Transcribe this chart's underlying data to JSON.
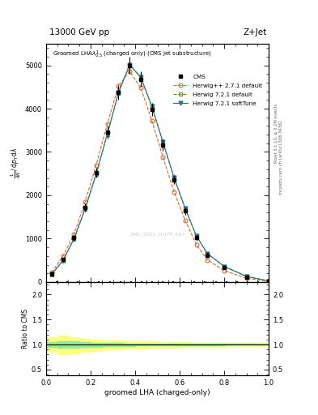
{
  "top_title_left": "13000 GeV pp",
  "top_title_right": "Z+Jet",
  "xlabel": "groomed LHA (charged-only)",
  "ylabel_ratio": "Ratio to CMS",
  "cms_watermark": "CMS_2021_I1979_067",
  "rivet_text": "Rivet 3.1.10, ≥ 3.2M events",
  "mcplots_text": "mcplots.cern.ch [arXiv:1306.3436]",
  "x": [
    0.025,
    0.075,
    0.125,
    0.175,
    0.225,
    0.275,
    0.325,
    0.375,
    0.425,
    0.475,
    0.525,
    0.575,
    0.625,
    0.675,
    0.725,
    0.8,
    0.9,
    1.0
  ],
  "cms_y": [
    180,
    520,
    1020,
    1720,
    2530,
    3450,
    4380,
    5000,
    4680,
    3980,
    3160,
    2360,
    1640,
    1020,
    620,
    330,
    120,
    20
  ],
  "cms_yerr": [
    25,
    40,
    65,
    90,
    110,
    140,
    170,
    190,
    175,
    155,
    130,
    105,
    80,
    60,
    45,
    25,
    15,
    5
  ],
  "hpp_y": [
    220,
    590,
    1100,
    1850,
    2700,
    3650,
    4520,
    4860,
    4480,
    3720,
    2880,
    2080,
    1420,
    860,
    510,
    265,
    90,
    15
  ],
  "h721d_y": [
    175,
    490,
    990,
    1680,
    2490,
    3410,
    4360,
    5010,
    4720,
    4050,
    3220,
    2400,
    1690,
    1060,
    650,
    360,
    130,
    25
  ],
  "h721s_y": [
    178,
    495,
    995,
    1685,
    2495,
    3415,
    4365,
    5015,
    4725,
    4055,
    3225,
    2405,
    1695,
    1065,
    655,
    362,
    132,
    26
  ],
  "ratio_x_edges": [
    0.0,
    0.05,
    0.1,
    0.15,
    0.2,
    0.25,
    0.3,
    0.35,
    0.4,
    0.45,
    0.5,
    0.55,
    0.6,
    0.65,
    0.7,
    0.75,
    0.8,
    0.85,
    0.9,
    0.95,
    1.0
  ],
  "ratio_green_lo": [
    0.95,
    0.93,
    0.94,
    0.95,
    0.96,
    0.97,
    0.97,
    0.97,
    0.98,
    0.98,
    0.98,
    0.98,
    0.99,
    0.99,
    0.99,
    0.99,
    1.0,
    1.0,
    1.0,
    1.0
  ],
  "ratio_green_hi": [
    1.05,
    1.07,
    1.06,
    1.05,
    1.04,
    1.03,
    1.03,
    1.02,
    1.02,
    1.02,
    1.02,
    1.01,
    1.01,
    1.01,
    1.01,
    1.01,
    1.01,
    1.01,
    1.01,
    1.01
  ],
  "ratio_yellow_lo": [
    0.86,
    0.8,
    0.83,
    0.86,
    0.88,
    0.9,
    0.91,
    0.92,
    0.92,
    0.93,
    0.94,
    0.94,
    0.95,
    0.95,
    0.96,
    0.96,
    0.97,
    0.97,
    0.97,
    0.97
  ],
  "ratio_yellow_hi": [
    1.14,
    1.18,
    1.15,
    1.12,
    1.1,
    1.09,
    1.08,
    1.07,
    1.07,
    1.06,
    1.05,
    1.05,
    1.05,
    1.04,
    1.04,
    1.04,
    1.03,
    1.03,
    1.03,
    1.03
  ],
  "color_cms": "#000000",
  "color_hpp": "#d4692a",
  "color_h721d": "#5a9020",
  "color_h721s": "#2a7090",
  "color_green_band": "#90ee90",
  "color_yellow_band": "#ffff80",
  "ylim_main": [
    0,
    5500
  ],
  "ylim_ratio": [
    0.38,
    2.25
  ],
  "yticks_main": [
    0,
    1000,
    2000,
    3000,
    4000,
    5000
  ],
  "yticks_ratio": [
    0.5,
    1.0,
    1.5,
    2.0
  ]
}
